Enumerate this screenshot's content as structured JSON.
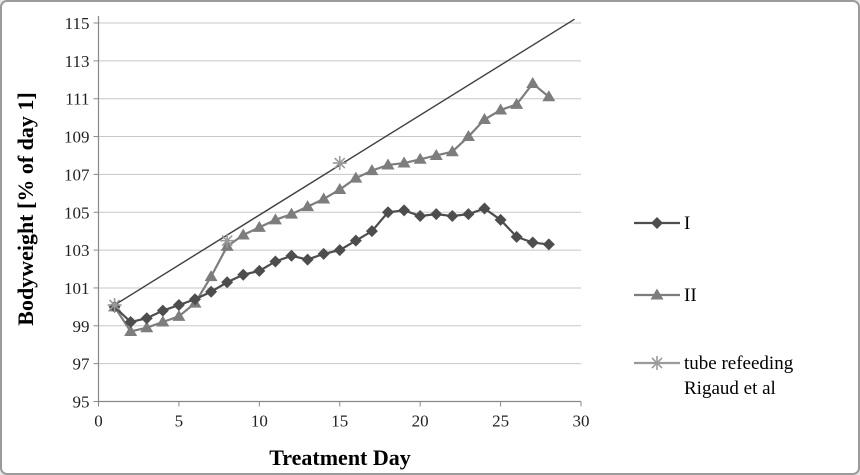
{
  "chart_data": {
    "type": "line",
    "title": "",
    "xlabel": "Treatment Day",
    "ylabel": "Bodyweight [% of day 1]",
    "xlim": [
      0,
      30
    ],
    "ylim": [
      95,
      115
    ],
    "x_ticks": [
      0,
      5,
      10,
      15,
      20,
      25,
      30
    ],
    "y_ticks": [
      95,
      97,
      99,
      101,
      103,
      105,
      107,
      109,
      111,
      113,
      115
    ],
    "grid": "horizontal",
    "legend_position": "right",
    "colors": {
      "grid": "#c7c7c7",
      "axis": "#898989",
      "text": "#1f1f1f",
      "trend": "#3f3f3f",
      "background": "#ffffff",
      "border": "#9b9b9b"
    },
    "days": [
      1,
      2,
      3,
      4,
      5,
      6,
      7,
      8,
      9,
      10,
      11,
      12,
      13,
      14,
      15,
      16,
      17,
      18,
      19,
      20,
      21,
      22,
      23,
      24,
      25,
      26,
      27,
      28
    ],
    "series": [
      {
        "name": "I",
        "marker": "diamond",
        "color": "#4d4d4d",
        "values": [
          100.0,
          99.2,
          99.4,
          99.8,
          100.1,
          100.4,
          100.8,
          101.3,
          101.7,
          101.9,
          102.4,
          102.7,
          102.5,
          102.8,
          103.0,
          103.5,
          104.0,
          105.0,
          105.1,
          104.8,
          104.9,
          104.8,
          104.9,
          105.2,
          104.6,
          103.7,
          103.4,
          103.3
        ]
      },
      {
        "name": "II",
        "marker": "triangle",
        "color": "#7d7d7d",
        "values": [
          100.0,
          98.7,
          98.9,
          99.2,
          99.5,
          100.2,
          101.6,
          103.2,
          103.8,
          104.2,
          104.6,
          104.9,
          105.3,
          105.7,
          106.2,
          106.8,
          107.2,
          107.5,
          107.6,
          107.8,
          108.0,
          108.2,
          109.0,
          109.9,
          110.4,
          110.7,
          111.8,
          111.1
        ]
      },
      {
        "name": "tube refeeding Rigaud et al",
        "marker": "star",
        "color": "#9a9a9a",
        "marker_days": [
          1,
          8,
          15
        ],
        "marker_values": [
          100.1,
          103.5,
          107.6
        ],
        "trend_x": [
          1,
          29.6
        ],
        "trend_y": [
          100.1,
          115.2
        ]
      }
    ]
  }
}
